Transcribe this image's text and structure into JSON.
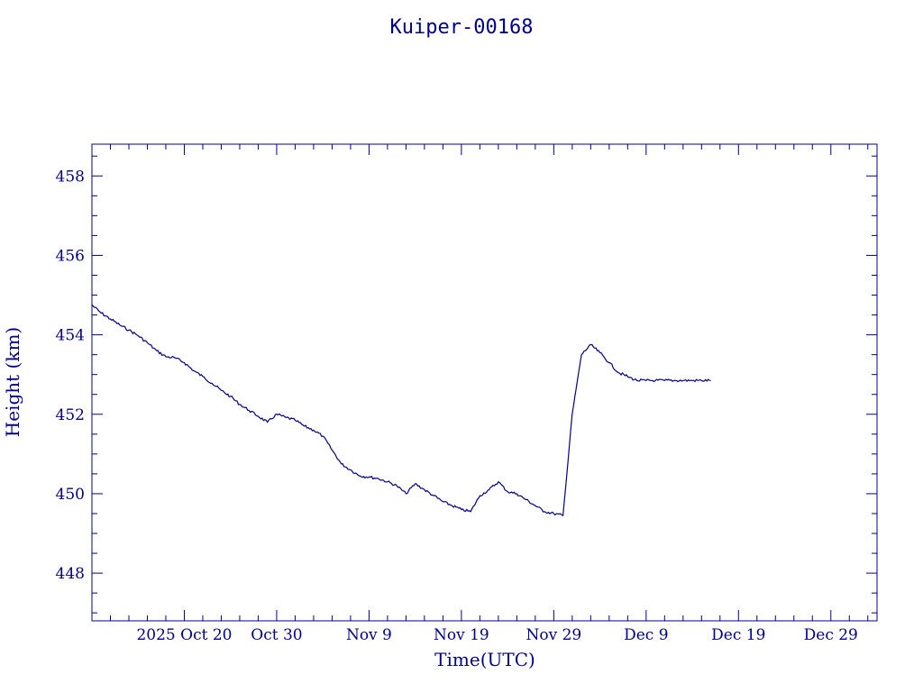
{
  "chart_data": {
    "type": "line",
    "title": "Kuiper-00168",
    "xlabel": "Time(UTC)",
    "ylabel": "Height (km)",
    "xlim": [
      "2025-10-10",
      "2026-01-03"
    ],
    "ylim": [
      446.8,
      458.8
    ],
    "x_tick_labels": [
      {
        "date": "2025-10-20",
        "label": "2025 Oct 20"
      },
      {
        "date": "2025-10-30",
        "label": "Oct 30"
      },
      {
        "date": "2025-11-09",
        "label": "Nov  9"
      },
      {
        "date": "2025-11-19",
        "label": "Nov 19"
      },
      {
        "date": "2025-11-29",
        "label": "Nov 29"
      },
      {
        "date": "2025-12-09",
        "label": "Dec  9"
      },
      {
        "date": "2025-12-19",
        "label": "Dec 19"
      },
      {
        "date": "2025-12-29",
        "label": "Dec 29"
      }
    ],
    "y_ticks": [
      448,
      450,
      452,
      454,
      456,
      458
    ],
    "grid": false,
    "color": "#00008b",
    "series": [
      {
        "x": [
          "2025-10-10",
          "2025-10-11",
          "2025-10-12",
          "2025-10-13",
          "2025-10-14",
          "2025-10-15",
          "2025-10-16",
          "2025-10-17",
          "2025-10-18",
          "2025-10-19",
          "2025-10-20",
          "2025-10-21",
          "2025-10-22",
          "2025-10-23",
          "2025-10-24",
          "2025-10-25",
          "2025-10-26",
          "2025-10-27",
          "2025-10-28",
          "2025-10-29",
          "2025-10-30",
          "2025-10-31",
          "2025-11-01",
          "2025-11-02",
          "2025-11-03",
          "2025-11-04",
          "2025-11-05",
          "2025-11-06",
          "2025-11-07",
          "2025-11-08",
          "2025-11-09",
          "2025-11-10",
          "2025-11-11",
          "2025-11-12",
          "2025-11-13",
          "2025-11-14",
          "2025-11-15",
          "2025-11-16",
          "2025-11-17",
          "2025-11-18",
          "2025-11-19",
          "2025-11-20",
          "2025-11-21",
          "2025-11-22",
          "2025-11-23",
          "2025-11-24",
          "2025-11-25",
          "2025-11-26",
          "2025-11-27",
          "2025-11-28",
          "2025-11-29",
          "2025-11-30",
          "2025-12-01",
          "2025-12-02",
          "2025-12-03",
          "2025-12-04",
          "2025-12-05",
          "2025-12-06",
          "2025-12-07",
          "2025-12-08",
          "2025-12-09",
          "2025-12-10",
          "2025-12-10",
          "2025-12-11",
          "2025-12-12",
          "2025-12-13",
          "2025-12-14",
          "2025-12-15",
          "2025-12-16"
        ],
        "y": [
          454.75,
          454.55,
          454.4,
          454.25,
          454.12,
          453.98,
          453.8,
          453.6,
          453.45,
          453.42,
          453.3,
          453.1,
          452.95,
          452.78,
          452.6,
          452.45,
          452.25,
          452.1,
          451.95,
          451.8,
          452.0,
          451.92,
          451.85,
          451.7,
          451.6,
          451.45,
          451.1,
          450.75,
          450.6,
          450.45,
          450.42,
          450.38,
          450.3,
          450.2,
          450.0,
          450.25,
          450.1,
          449.95,
          449.8,
          449.7,
          449.6,
          449.55,
          449.95,
          450.1,
          450.3,
          450.05,
          450.0,
          449.85,
          449.7,
          449.55,
          449.5,
          449.45,
          452.0,
          453.5,
          453.75,
          453.55,
          453.3,
          453.05,
          452.95,
          452.85,
          452.85,
          452.85,
          452.85,
          452.85,
          452.85,
          452.85,
          452.85,
          452.85,
          452.85
        ]
      }
    ]
  }
}
